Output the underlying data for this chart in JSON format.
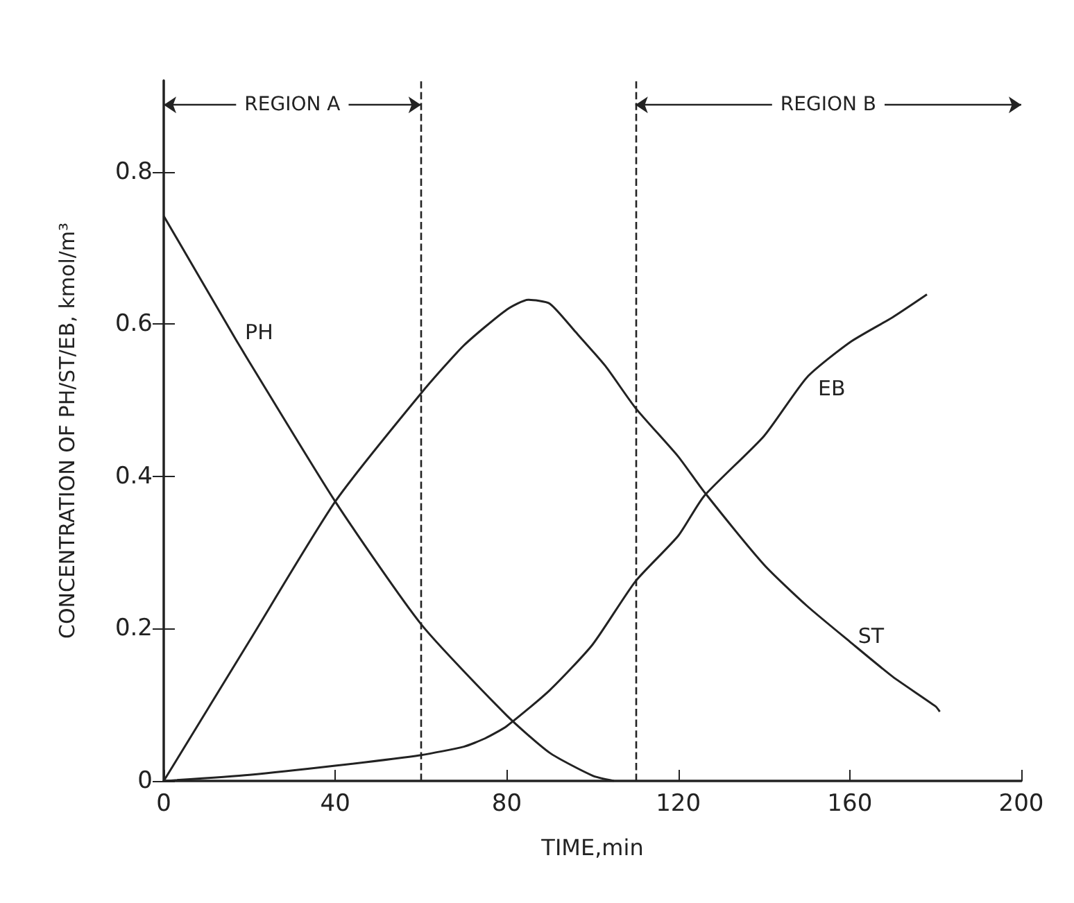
{
  "chart_data": {
    "type": "line",
    "xlabel": "TIME,min",
    "ylabel": "CONCENTRATION OF PH/ST/EB, kmol/m³",
    "xlim": [
      0,
      200
    ],
    "xticks": [
      0,
      40,
      80,
      120,
      160,
      200
    ],
    "ylim": [
      0,
      0.92
    ],
    "yticks": [
      0,
      0.2,
      0.4,
      0.6,
      0.8
    ],
    "grid": false,
    "legend": false,
    "marker": "none",
    "line_style": "solid",
    "series": [
      {
        "name": "PH",
        "color": "#222222",
        "x": [
          0,
          17,
          20,
          40,
          60,
          80,
          90,
          100,
          105
        ],
        "values": [
          0.742,
          0.578,
          0.55,
          0.367,
          0.206,
          0.086,
          0.037,
          0.007,
          0
        ]
      },
      {
        "name": "ST",
        "color": "#222222",
        "x": [
          0,
          20,
          40,
          60,
          70,
          80,
          85,
          90,
          96,
          103,
          110,
          120,
          126,
          140,
          150,
          160,
          170,
          180,
          181
        ],
        "values": [
          0,
          0.184,
          0.367,
          0.509,
          0.572,
          0.619,
          0.632,
          0.627,
          0.59,
          0.545,
          0.49,
          0.426,
          0.38,
          0.284,
          0.23,
          0.183,
          0.137,
          0.098,
          0.091
        ]
      },
      {
        "name": "EB",
        "color": "#222222",
        "x": [
          0,
          20,
          40,
          60,
          70,
          75,
          80,
          90,
          100,
          110,
          120,
          126,
          140,
          150,
          160,
          170,
          178
        ],
        "values": [
          0,
          0.008,
          0.02,
          0.034,
          0.045,
          0.056,
          0.072,
          0.119,
          0.179,
          0.262,
          0.322,
          0.374,
          0.453,
          0.53,
          0.576,
          0.609,
          0.639
        ]
      }
    ],
    "ref_lines": [
      {
        "axis": "x",
        "value": 60,
        "label": null,
        "line_style": "dashed"
      },
      {
        "axis": "x",
        "value": 110,
        "label": null,
        "line_style": "dashed"
      }
    ],
    "annotations": [
      "REGION A",
      "REGION B"
    ]
  }
}
